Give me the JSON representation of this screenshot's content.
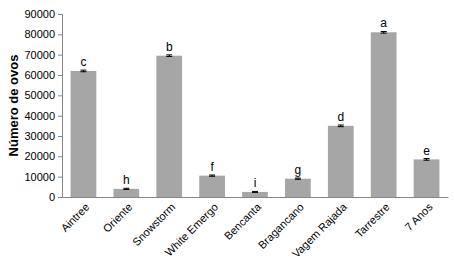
{
  "chart_data": {
    "type": "bar",
    "y_label": "Número de ovos",
    "categories": [
      "Aintree",
      "Oriente",
      "Snowstorm",
      "White Emergo",
      "Bencanta",
      "Bragancano",
      "Vagem Rajada",
      "Tarrestre",
      "7 Anos"
    ],
    "values": [
      62000,
      4000,
      69500,
      10500,
      2500,
      9000,
      35000,
      81000,
      18500
    ],
    "errors": [
      400,
      300,
      400,
      300,
      250,
      300,
      400,
      400,
      400
    ],
    "annotations": [
      "c",
      "h",
      "b",
      "f",
      "i",
      "g",
      "d",
      "a",
      "e"
    ],
    "color": "#a6a6a6",
    "ylim": [
      0,
      90000
    ],
    "yticks": [
      0,
      10000,
      20000,
      30000,
      40000,
      50000,
      60000,
      70000,
      80000,
      90000
    ],
    "grid": false
  }
}
